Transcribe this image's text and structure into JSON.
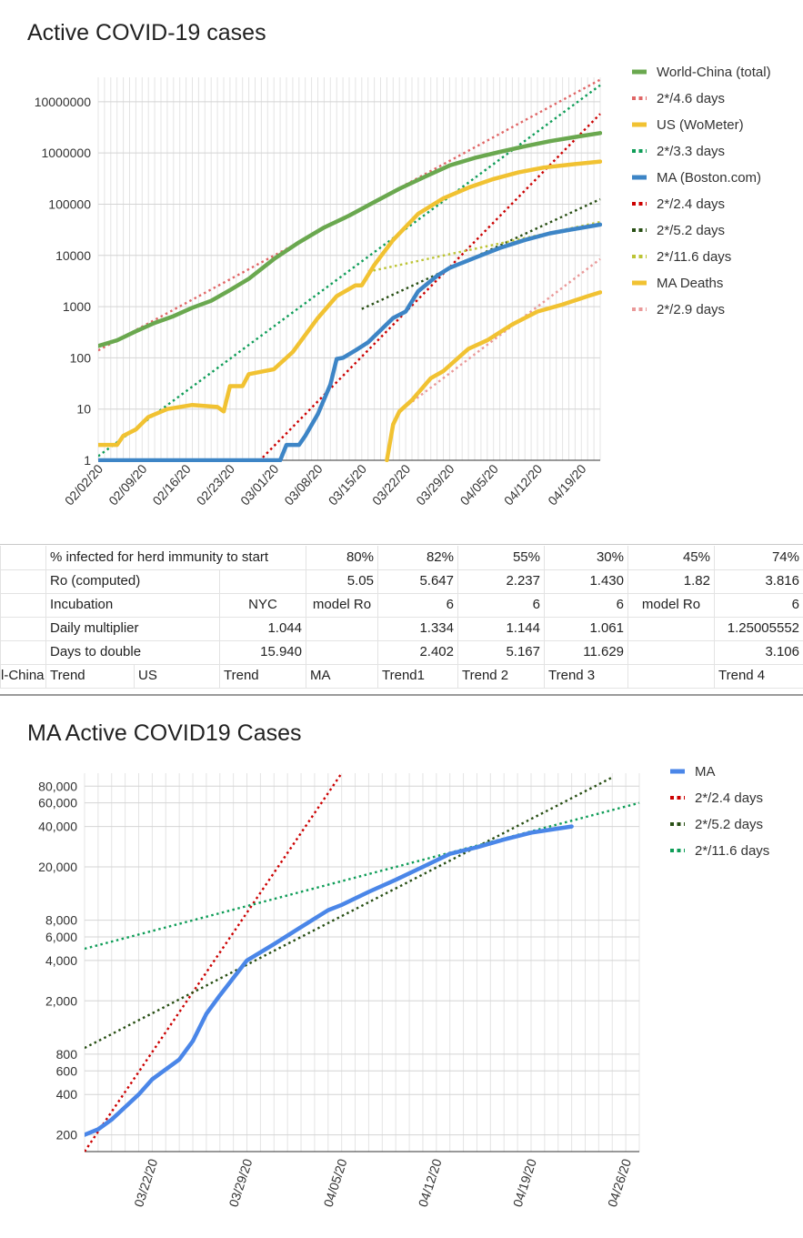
{
  "chart1": {
    "title": "Active COVID-19 cases",
    "chart_data": {
      "type": "line",
      "y_scale": "log",
      "ylim": [
        1,
        30000000
      ],
      "y_ticks": [
        1,
        10,
        100,
        1000,
        10000,
        100000,
        1000000,
        10000000
      ],
      "y_tick_labels": [
        "1",
        "10",
        "100",
        "1000",
        "10000",
        "100000",
        "1000000",
        "10000000"
      ],
      "xlim": [
        "2020-02-02",
        "2020-04-22"
      ],
      "x_tick_labels": [
        "02/02/20",
        "02/09/20",
        "02/16/20",
        "02/23/20",
        "03/01/20",
        "03/08/20",
        "03/15/20",
        "03/22/20",
        "03/29/20",
        "04/05/20",
        "04/12/20",
        "04/19/20"
      ],
      "x_tick_dates": [
        "2020-02-02",
        "2020-02-09",
        "2020-02-16",
        "2020-02-23",
        "2020-03-01",
        "2020-03-08",
        "2020-03-15",
        "2020-03-22",
        "2020-03-29",
        "2020-04-05",
        "2020-04-12",
        "2020-04-19"
      ],
      "grid": true,
      "legend_position": "right",
      "series": [
        {
          "name": "World-China (total)",
          "color": "#6aa84f",
          "style": "solid",
          "x": [
            "2020-02-02",
            "2020-02-05",
            "2020-02-08",
            "2020-02-11",
            "2020-02-14",
            "2020-02-17",
            "2020-02-20",
            "2020-02-23",
            "2020-02-26",
            "2020-03-01",
            "2020-03-05",
            "2020-03-09",
            "2020-03-13",
            "2020-03-17",
            "2020-03-21",
            "2020-03-25",
            "2020-03-29",
            "2020-04-02",
            "2020-04-06",
            "2020-04-10",
            "2020-04-14",
            "2020-04-18",
            "2020-04-22"
          ],
          "y": [
            170,
            220,
            330,
            480,
            650,
            950,
            1300,
            2100,
            3500,
            8500,
            18000,
            35000,
            60000,
            110000,
            200000,
            340000,
            570000,
            800000,
            1050000,
            1350000,
            1700000,
            2050000,
            2450000
          ]
        },
        {
          "name": "2*/4.6 days",
          "color": "#e06666",
          "style": "dotted",
          "x": [
            "2020-02-02",
            "2020-04-22"
          ],
          "y": [
            140,
            27000000
          ]
        },
        {
          "name": "US (WoMeter)",
          "color": "#f1c232",
          "style": "solid",
          "x": [
            "2020-02-02",
            "2020-02-05",
            "2020-02-06",
            "2020-02-08",
            "2020-02-10",
            "2020-02-13",
            "2020-02-17",
            "2020-02-21",
            "2020-02-22",
            "2020-02-23",
            "2020-02-25",
            "2020-02-26",
            "2020-03-01",
            "2020-03-04",
            "2020-03-08",
            "2020-03-11",
            "2020-03-14",
            "2020-03-15",
            "2020-03-17",
            "2020-03-20",
            "2020-03-24",
            "2020-03-28",
            "2020-04-01",
            "2020-04-05",
            "2020-04-09",
            "2020-04-13",
            "2020-04-17",
            "2020-04-22"
          ],
          "y": [
            2,
            2,
            3,
            4,
            7,
            10,
            12,
            11,
            9,
            28,
            28,
            48,
            60,
            130,
            600,
            1600,
            2600,
            2600,
            6500,
            20000,
            65000,
            130000,
            210000,
            310000,
            420000,
            520000,
            590000,
            680000
          ]
        },
        {
          "name": "2*/3.3 days",
          "color": "#0f9d58",
          "style": "dotted",
          "x": [
            "2020-02-02",
            "2020-04-22"
          ],
          "y": [
            1.2,
            21000000
          ]
        },
        {
          "name": "MA (Boston.com)",
          "color": "#3d85c6",
          "style": "solid",
          "x": [
            "2020-02-02",
            "2020-03-02",
            "2020-03-03",
            "2020-03-05",
            "2020-03-06",
            "2020-03-08",
            "2020-03-10",
            "2020-03-11",
            "2020-03-12",
            "2020-03-14",
            "2020-03-16",
            "2020-03-20",
            "2020-03-22",
            "2020-03-24",
            "2020-03-27",
            "2020-03-29",
            "2020-04-02",
            "2020-04-06",
            "2020-04-10",
            "2020-04-14",
            "2020-04-18",
            "2020-04-22"
          ],
          "y": [
            1,
            1,
            2,
            2,
            3,
            8,
            30,
            95,
            100,
            140,
            200,
            600,
            800,
            2000,
            4000,
            5700,
            9000,
            14000,
            20000,
            27000,
            33000,
            40000
          ]
        },
        {
          "name": "2*/2.4 days",
          "color": "#cc0000",
          "style": "dotted",
          "x": [
            "2020-02-27",
            "2020-04-22"
          ],
          "y": [
            0.8,
            5800000
          ]
        },
        {
          "name": "2*/5.2 days",
          "color": "#274e13",
          "style": "dotted",
          "x": [
            "2020-03-15",
            "2020-04-22"
          ],
          "y": [
            900,
            125000
          ]
        },
        {
          "name": "2*/11.6 days",
          "color": "#bcc435",
          "style": "dotted",
          "x": [
            "2020-03-16",
            "2020-04-22"
          ],
          "y": [
            4800,
            45000
          ]
        },
        {
          "name": "MA Deaths",
          "color": "#f1c232",
          "style": "solid",
          "x": [
            "2020-03-19",
            "2020-03-20",
            "2020-03-21",
            "2020-03-23",
            "2020-03-26",
            "2020-03-28",
            "2020-04-01",
            "2020-04-04",
            "2020-04-08",
            "2020-04-12",
            "2020-04-16",
            "2020-04-20",
            "2020-04-22"
          ],
          "y": [
            1,
            5,
            9,
            15,
            40,
            55,
            150,
            220,
            450,
            800,
            1100,
            1600,
            1900
          ]
        },
        {
          "name": "2*/2.9 days",
          "color": "#ea9999",
          "style": "dotted",
          "x": [
            "2020-03-21",
            "2020-04-22"
          ],
          "y": [
            9,
            8500
          ]
        }
      ]
    }
  },
  "table": {
    "rows": [
      [
        "",
        "% infected for herd immunity to start",
        "",
        "",
        "80%",
        "82%",
        "55%",
        "30%",
        "45%",
        "74%"
      ],
      [
        "",
        "Ro (computed)",
        "",
        "",
        "5.05",
        "5.647",
        "2.237",
        "1.430",
        "1.82",
        "3.816"
      ],
      [
        "",
        "Incubation",
        "",
        "NYC",
        "model Ro",
        "6",
        "6",
        "6",
        "model Ro",
        "6"
      ],
      [
        "",
        "Daily multiplier",
        "",
        "1.044",
        "",
        "1.334",
        "1.144",
        "1.061",
        "",
        "1.25005552"
      ],
      [
        "",
        "Days to double",
        "",
        "15.940",
        "",
        "2.402",
        "5.167",
        "11.629",
        "",
        "3.106"
      ],
      [
        "l-China",
        "Trend",
        "US",
        "Trend",
        "MA",
        "Trend1",
        "Trend 2",
        "Trend 3",
        "",
        "Trend 4"
      ]
    ]
  },
  "chart2": {
    "title": "MA Active COVID19 Cases",
    "chart_data": {
      "type": "line",
      "y_scale": "log",
      "ylim": [
        150,
        100000
      ],
      "y_ticks": [
        200,
        400,
        600,
        800,
        2000,
        4000,
        6000,
        8000,
        20000,
        40000,
        60000,
        80000
      ],
      "y_tick_labels": [
        "200",
        "400",
        "600",
        "800",
        "2,000",
        "4,000",
        "6,000",
        "8,000",
        "20,000",
        "40,000",
        "60,000",
        "80,000"
      ],
      "xlim": [
        "2020-03-17",
        "2020-04-27"
      ],
      "x_tick_labels": [
        "03/22/20",
        "03/29/20",
        "04/05/20",
        "04/12/20",
        "04/19/20",
        "04/26/20"
      ],
      "x_tick_dates": [
        "2020-03-22",
        "2020-03-29",
        "2020-04-05",
        "2020-04-12",
        "2020-04-19",
        "2020-04-26"
      ],
      "grid": true,
      "legend_position": "right",
      "series": [
        {
          "name": "MA",
          "color": "#4a86e8",
          "style": "solid",
          "x": [
            "2020-03-17",
            "2020-03-18",
            "2020-03-19",
            "2020-03-21",
            "2020-03-22",
            "2020-03-24",
            "2020-03-25",
            "2020-03-26",
            "2020-03-27",
            "2020-03-29",
            "2020-03-31",
            "2020-04-02",
            "2020-04-04",
            "2020-04-05",
            "2020-04-07",
            "2020-04-09",
            "2020-04-11",
            "2020-04-13",
            "2020-04-15",
            "2020-04-17",
            "2020-04-19",
            "2020-04-22"
          ],
          "y": [
            200,
            220,
            260,
            400,
            520,
            730,
            1000,
            1600,
            2200,
            4000,
            5300,
            7100,
            9500,
            10400,
            13000,
            16000,
            20000,
            25000,
            28000,
            32000,
            36000,
            40000
          ]
        },
        {
          "name": "2*/2.4 days",
          "color": "#cc0000",
          "style": "dotted",
          "x": [
            "2020-03-17",
            "2020-04-05"
          ],
          "y": [
            150,
            100000
          ]
        },
        {
          "name": "2*/5.2 days",
          "color": "#274e13",
          "style": "dotted",
          "x": [
            "2020-03-17",
            "2020-04-25"
          ],
          "y": [
            890,
            93000
          ]
        },
        {
          "name": "2*/11.6 days",
          "color": "#0f9d58",
          "style": "dotted",
          "x": [
            "2020-03-17",
            "2020-04-27"
          ],
          "y": [
            4900,
            60000
          ]
        }
      ]
    }
  }
}
